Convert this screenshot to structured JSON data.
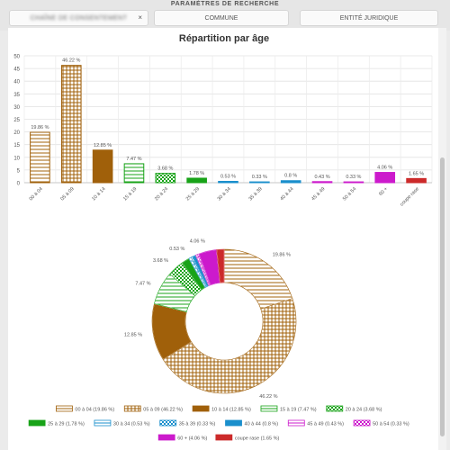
{
  "header": {
    "title": "PARAMÈTRES DE RECHERCHE"
  },
  "filters": [
    {
      "label": "CHAÎNE DE CONSENTEMENT",
      "blurred": true,
      "close_icon": "×"
    },
    {
      "label": "COMMUNE"
    },
    {
      "label": "ENTITÉ JURIDIQUE"
    }
  ],
  "colors": {
    "brown": "#a0600a",
    "green": "#18a318",
    "blue": "#1a8fcc",
    "magenta": "#cc1acc",
    "red": "#cc2a2a"
  },
  "chart_data": [
    {
      "type": "bar",
      "title": "Répartition par âge",
      "categories": [
        "00 à 04",
        "05 à 09",
        "10 à 14",
        "15 à 19",
        "20 à 24",
        "25 à 29",
        "30 à 34",
        "35 à 39",
        "40 à 44",
        "45 à 49",
        "50 à 54",
        "60 +",
        "coupe rase"
      ],
      "values": [
        19.86,
        46.22,
        12.85,
        7.47,
        3.68,
        1.78,
        0.53,
        0.33,
        0.8,
        0.43,
        0.33,
        4.06,
        1.65
      ],
      "data_labels": [
        "19.86 %",
        "46.22 %",
        "12.85 %",
        "7.47 %",
        "3.68 %",
        "1.78 %",
        "0.53 %",
        "0.33 %",
        "0.8 %",
        "0.43 %",
        "0.33 %",
        "4.06 %",
        "1.65 %"
      ],
      "yticks": [
        "0",
        "5",
        "10",
        "15",
        "20",
        "25",
        "30",
        "35",
        "40",
        "45",
        "50"
      ],
      "ylim": [
        0,
        50
      ],
      "grid": true
    },
    {
      "type": "pie",
      "donut": true,
      "categories": [
        "00 à 04",
        "05 à 09",
        "10 à 14",
        "15 à 19",
        "20 à 24",
        "25 à 29",
        "30 à 34",
        "35 à 39",
        "40 à 44",
        "45 à 49",
        "50 à 54",
        "60 +",
        "coupe rase"
      ],
      "values": [
        19.86,
        46.22,
        12.85,
        7.47,
        3.68,
        1.78,
        0.53,
        0.33,
        0.8,
        0.43,
        0.33,
        4.06,
        1.65
      ],
      "slice_labels": [
        {
          "index": 0,
          "text": "19.86 %"
        },
        {
          "index": 1,
          "text": "46.22 %"
        },
        {
          "index": 2,
          "text": "12.85 %"
        },
        {
          "index": 3,
          "text": "7.47 %"
        },
        {
          "index": 4,
          "text": "3.68 %"
        },
        {
          "index": 6,
          "text": "0.53 %"
        },
        {
          "index": 11,
          "text": "4.06 %"
        }
      ],
      "legend": [
        "00 à 04 (19.86 %)",
        "05 à 09 (46.22 %)",
        "10 à 14 (12.85 %)",
        "15 à 19 (7.47 %)",
        "20 à 24 (3.68 %)",
        "25 à 29 (1.78 %)",
        "30 à 34 (0.53 %)",
        "35 à 39 (0.33 %)",
        "40 à 44 (0.8 %)",
        "45 à 49 (0.43 %)",
        "50 à 54 (0.33 %)",
        "60 + (4.06 %)",
        "coupe rase (1.65 %)"
      ],
      "legend_position": "bottom"
    }
  ]
}
